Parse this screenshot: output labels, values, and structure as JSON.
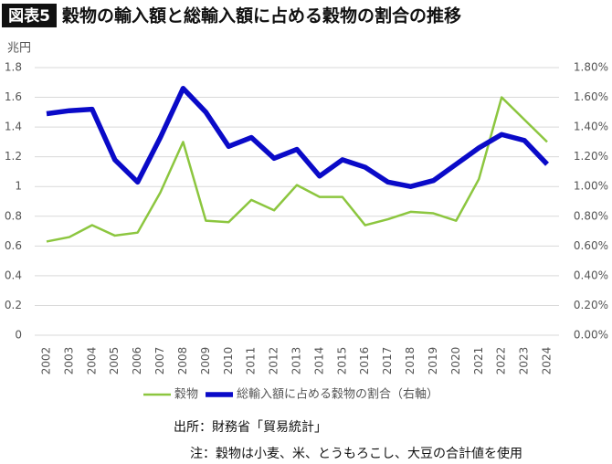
{
  "chart_data": {
    "type": "line",
    "figure_label": "図表5",
    "title": "穀物の輸入額と総輸入額に占める穀物の割合の推移",
    "y_label": "兆円",
    "categories": [
      "2002",
      "2003",
      "2004",
      "2005",
      "2006",
      "2007",
      "2008",
      "2009",
      "2010",
      "2011",
      "2012",
      "2013",
      "2014",
      "2015",
      "2016",
      "2017",
      "2018",
      "2019",
      "2020",
      "2021",
      "2022",
      "2023",
      "2024"
    ],
    "series": [
      {
        "name": "穀物",
        "color": "#8cc63f",
        "width": 2.5,
        "values": [
          0.63,
          0.66,
          0.74,
          0.67,
          0.69,
          0.96,
          1.3,
          0.77,
          0.76,
          0.91,
          0.84,
          1.01,
          0.93,
          0.93,
          0.74,
          0.78,
          0.83,
          0.82,
          0.77,
          1.05,
          1.6,
          1.45,
          1.3
        ]
      },
      {
        "name": "総輸入額に占める穀物の割合（右軸）",
        "color": "#0a0ac8",
        "width": 5.5,
        "axis": "y2",
        "values": [
          1.49,
          1.51,
          1.52,
          1.18,
          1.03,
          1.33,
          1.66,
          1.5,
          1.27,
          1.33,
          1.19,
          1.25,
          1.07,
          1.18,
          1.13,
          1.03,
          1.0,
          1.04,
          1.15,
          1.26,
          1.35,
          1.31,
          1.15
        ]
      }
    ],
    "ylim": [
      0,
      1.8
    ],
    "yticks": [
      0,
      0.2,
      0.4,
      0.6,
      0.8,
      1,
      1.2,
      1.4,
      1.6,
      1.8
    ],
    "y2lim": [
      0,
      1.8
    ],
    "y2ticks": [
      {
        "value": 0,
        "label": "0.00%"
      },
      {
        "value": 0.2,
        "label": "0.20%"
      },
      {
        "value": 0.4,
        "label": "0.40%"
      },
      {
        "value": 0.6,
        "label": "0.60%"
      },
      {
        "value": 0.8,
        "label": "0.80%"
      },
      {
        "value": 1,
        "label": "1.00%"
      },
      {
        "value": 1.2,
        "label": "1.20%"
      },
      {
        "value": 1.4,
        "label": "1.40%"
      },
      {
        "value": 1.6,
        "label": "1.60%"
      },
      {
        "value": 1.8,
        "label": "1.80%"
      }
    ],
    "grid": true,
    "legend": "bottom",
    "source": "出所：財務省「貿易統計」",
    "note": "注：穀物は小麦、米、とうもろこし、大豆の合計値を使用"
  }
}
